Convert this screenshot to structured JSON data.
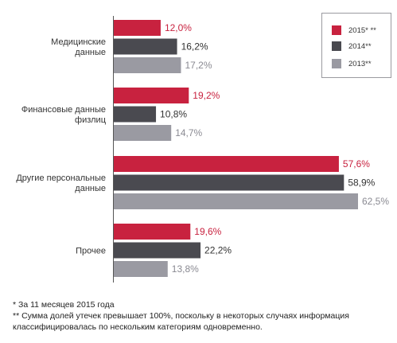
{
  "chart_data": {
    "type": "bar",
    "orientation": "horizontal",
    "categories": [
      "Медицинские\nданные",
      "Финансовые данные\nфизлиц",
      "Другие персональные\nданные",
      "Прочее"
    ],
    "series": [
      {
        "name": "2015* **",
        "color": "#c8223f",
        "values": [
          12.0,
          19.2,
          57.6,
          19.6
        ],
        "labels": [
          "12,0%",
          "19,2%",
          "57,6%",
          "19,6%"
        ],
        "label_color": "#c8223f"
      },
      {
        "name": "2014**",
        "color": "#4a4a50",
        "values": [
          16.2,
          10.8,
          58.9,
          22.2
        ],
        "labels": [
          "16,2%",
          "10,8%",
          "58,9%",
          "22,2%"
        ],
        "label_color": "#333333"
      },
      {
        "name": "2013**",
        "color": "#9a9aa2",
        "values": [
          17.2,
          14.7,
          62.5,
          13.8
        ],
        "labels": [
          "17,2%",
          "14,7%",
          "62,5%",
          "13,8%"
        ],
        "label_color": "#8a8a92"
      }
    ],
    "xlim": [
      0,
      62.5
    ],
    "grid": false,
    "legend_position": "top-right"
  },
  "footnotes": [
    "* За 11 месяцев 2015 года",
    "** Сумма долей утечек превышает 100%, поскольку в некоторых случаях информация\nклассифицировалась по нескольким категориям одновременно."
  ]
}
